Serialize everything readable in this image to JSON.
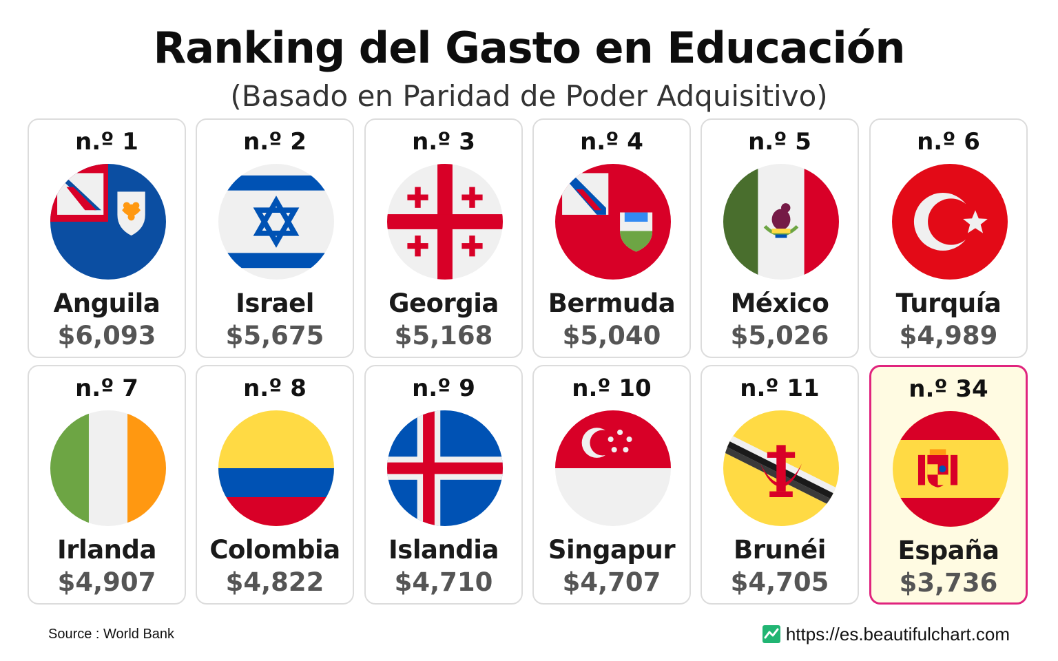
{
  "header": {
    "title": "Ranking del Gasto en Educación",
    "subtitle": "(Basado en Paridad de Poder Adquisitivo)"
  },
  "cards": [
    {
      "rank": "n.º 1",
      "country": "Anguila",
      "value": "$6,093",
      "flag": "anguilla-flag-icon"
    },
    {
      "rank": "n.º 2",
      "country": "Israel",
      "value": "$5,675",
      "flag": "israel-flag-icon"
    },
    {
      "rank": "n.º 3",
      "country": "Georgia",
      "value": "$5,168",
      "flag": "georgia-flag-icon"
    },
    {
      "rank": "n.º 4",
      "country": "Bermuda",
      "value": "$5,040",
      "flag": "bermuda-flag-icon"
    },
    {
      "rank": "n.º 5",
      "country": "México",
      "value": "$5,026",
      "flag": "mexico-flag-icon"
    },
    {
      "rank": "n.º 6",
      "country": "Turquía",
      "value": "$4,989",
      "flag": "turkey-flag-icon"
    },
    {
      "rank": "n.º 7",
      "country": "Irlanda",
      "value": "$4,907",
      "flag": "ireland-flag-icon"
    },
    {
      "rank": "n.º 8",
      "country": "Colombia",
      "value": "$4,822",
      "flag": "colombia-flag-icon"
    },
    {
      "rank": "n.º 9",
      "country": "Islandia",
      "value": "$4,710",
      "flag": "iceland-flag-icon"
    },
    {
      "rank": "n.º 10",
      "country": "Singapur",
      "value": "$4,707",
      "flag": "singapore-flag-icon"
    },
    {
      "rank": "n.º 11",
      "country": "Brunéi",
      "value": "$4,705",
      "flag": "brunei-flag-icon"
    },
    {
      "rank": "n.º 34",
      "country": "España",
      "value": "$3,736",
      "flag": "spain-flag-icon",
      "highlight": true
    }
  ],
  "colors": {
    "highlight_border": "#e0247e",
    "highlight_background": "#fffbe2",
    "card_border": "#dcdcdc"
  },
  "footer": {
    "source": "Source : World Bank",
    "url": "https://es.beautifulchart.com",
    "logo_icon": "chart-logo-icon"
  }
}
